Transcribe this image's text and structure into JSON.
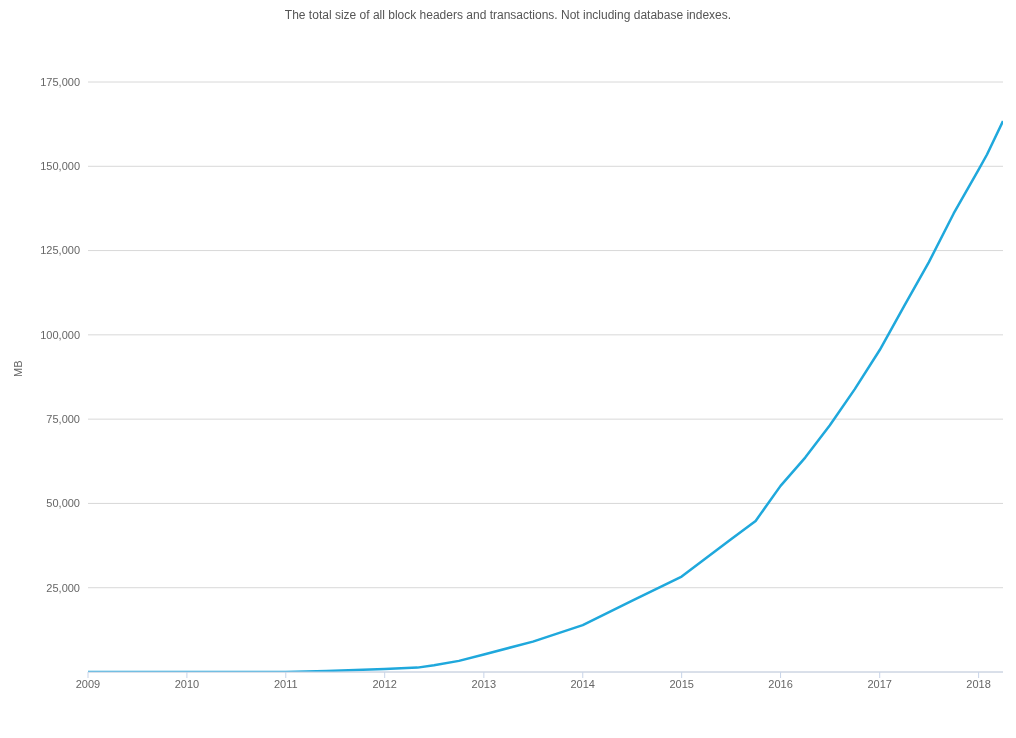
{
  "chart_data": {
    "type": "line",
    "subtitle": "The total size of all block headers and transactions. Not including database indexes.",
    "ylabel": "MB",
    "x": [
      "2009-01",
      "2010-01",
      "2011-01",
      "2011-06",
      "2012-01",
      "2012-05",
      "2012-07",
      "2012-10",
      "2013-01",
      "2013-07",
      "2014-01",
      "2014-07",
      "2015-01",
      "2015-07",
      "2015-10",
      "2016-01",
      "2016-04",
      "2016-07",
      "2016-10",
      "2017-01",
      "2017-04",
      "2017-07",
      "2017-10",
      "2018-01",
      "2018-02",
      "2018-04"
    ],
    "series": [
      {
        "color": "#1fa8dc",
        "values": [
          0,
          0,
          0,
          300,
          900,
          1300,
          2000,
          3300,
          5200,
          9000,
          13900,
          21100,
          28300,
          39300,
          44800,
          55200,
          63600,
          73200,
          83900,
          95500,
          108500,
          121500,
          136000,
          149000,
          153500,
          163400
        ]
      }
    ],
    "xlim": [
      "2009-01",
      "2018-04"
    ],
    "xticks": [
      "2009",
      "2010",
      "2011",
      "2012",
      "2013",
      "2014",
      "2015",
      "2016",
      "2017",
      "2018"
    ],
    "ylim": [
      0,
      175000
    ],
    "yticks": [
      {
        "value": 0,
        "label": null
      },
      {
        "value": 25000,
        "label": "25,000"
      },
      {
        "value": 50000,
        "label": "50,000"
      },
      {
        "value": 75000,
        "label": "75,000"
      },
      {
        "value": 100000,
        "label": "100,000"
      },
      {
        "value": 125000,
        "label": "125,000"
      },
      {
        "value": 150000,
        "label": "150,000"
      },
      {
        "value": 175000,
        "label": "175,000"
      }
    ],
    "grid": "y",
    "legend": false,
    "marker": "none",
    "line_style": "solid"
  }
}
